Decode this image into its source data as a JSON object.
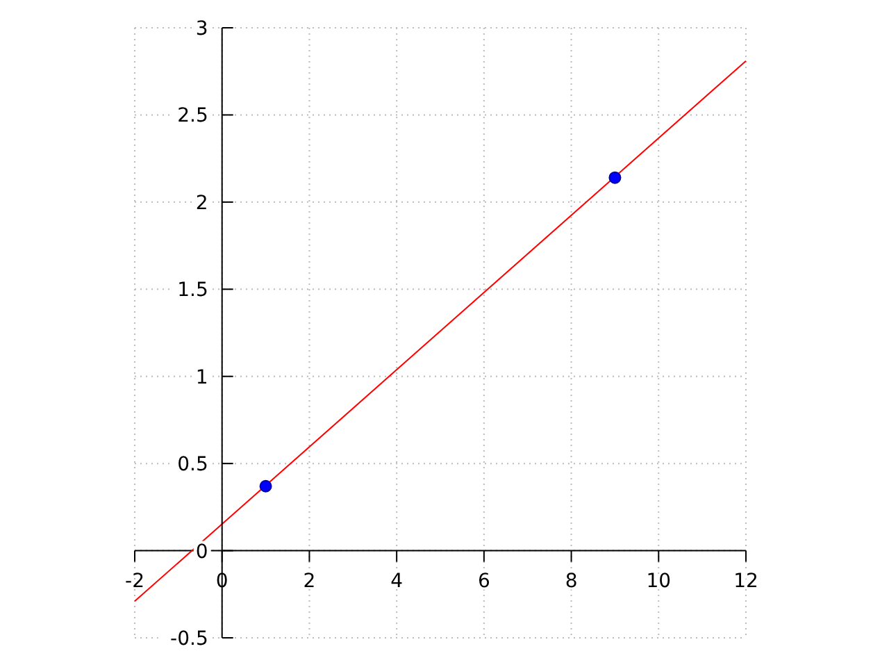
{
  "chart_data": {
    "type": "line",
    "xlim": [
      -2,
      12
    ],
    "ylim": [
      -0.5,
      3
    ],
    "xticks": [
      -2,
      0,
      2,
      4,
      6,
      8,
      10,
      12
    ],
    "yticks": [
      -0.5,
      0,
      0.5,
      1,
      1.5,
      2,
      2.5,
      3
    ],
    "grid": true,
    "series": [
      {
        "x": [
          -2,
          12
        ],
        "values": [
          -0.29,
          2.81
        ],
        "color": "#ff0000",
        "marker": "none"
      },
      {
        "type": "scatter",
        "x": [
          1,
          9
        ],
        "values": [
          0.37,
          2.14
        ],
        "color": "#0000ff",
        "marker": "circle"
      }
    ]
  }
}
